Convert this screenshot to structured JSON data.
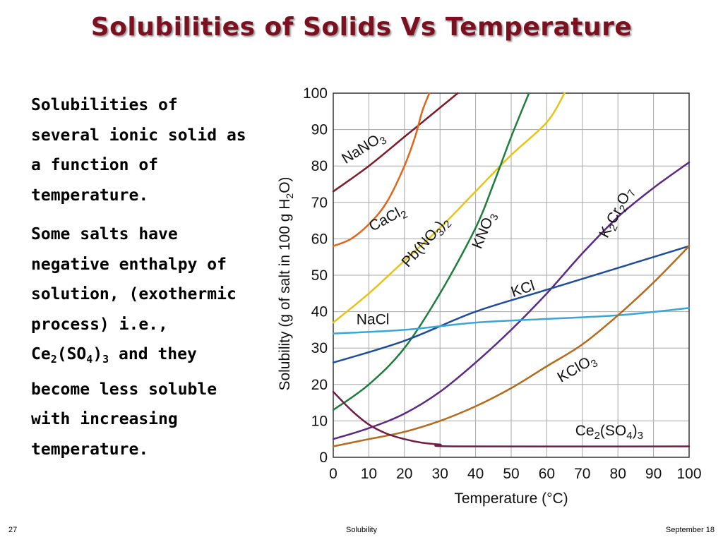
{
  "slide": {
    "title": "Solubilities of Solids Vs Temperature",
    "paragraph1": [
      "Solubilities of",
      "several ionic solid as",
      "a function of",
      "temperature."
    ],
    "paragraph2": {
      "lines": [
        "Some salts have",
        "negative enthalpy of",
        "solution, (exothermic",
        "process) i.e.,"
      ],
      "formula": {
        "a": "Ce",
        "s1": "2",
        "b": "(SO",
        "s2": "4",
        "c": ")",
        "s3": "3",
        "rest": " and they"
      },
      "lines_after": [
        "become less soluble",
        "with increasing",
        "temperature."
      ]
    },
    "footer": {
      "page": "27",
      "topic": "Solubility",
      "date": "September 18"
    }
  },
  "chart_data": {
    "type": "line",
    "xlabel": "Temperature (°C)",
    "ylabel_parts": {
      "a": "Solubility (g of salt in 100 g H",
      "sub": "2",
      "b": "O)"
    },
    "xlim": [
      0,
      100
    ],
    "ylim": [
      0,
      100
    ],
    "x_ticks": [
      "0",
      "10",
      "20",
      "30",
      "40",
      "50",
      "60",
      "70",
      "80",
      "90",
      "100"
    ],
    "y_ticks": [
      "0",
      "10",
      "20",
      "30",
      "40",
      "50",
      "60",
      "70",
      "80",
      "90",
      "100"
    ],
    "grid": true,
    "series": [
      {
        "name": "NaNO3",
        "color": "#7a1a2a",
        "label": [
          {
            "t": "NaNO"
          },
          {
            "t": "3",
            "sub": true
          }
        ],
        "points": [
          [
            0,
            73
          ],
          [
            10,
            80
          ],
          [
            20,
            88
          ],
          [
            30,
            96
          ],
          [
            35,
            100
          ]
        ]
      },
      {
        "name": "CaCl2",
        "color": "#e0661c",
        "label": [
          {
            "t": "CaCl"
          },
          {
            "t": "2",
            "sub": true
          }
        ],
        "points": [
          [
            0,
            58
          ],
          [
            5,
            60
          ],
          [
            10,
            64
          ],
          [
            15,
            70
          ],
          [
            20,
            80
          ],
          [
            23,
            88
          ],
          [
            25,
            95
          ],
          [
            27,
            100
          ]
        ]
      },
      {
        "name": "Pb(NO3)2",
        "color": "#e6c417",
        "label": [
          {
            "t": "Pb(NO"
          },
          {
            "t": "3",
            "sub": true
          },
          {
            "t": ")"
          },
          {
            "t": "2",
            "sub": true
          }
        ],
        "points": [
          [
            0,
            37
          ],
          [
            10,
            45
          ],
          [
            20,
            54
          ],
          [
            30,
            63
          ],
          [
            40,
            73
          ],
          [
            50,
            83
          ],
          [
            60,
            92
          ],
          [
            65,
            100
          ]
        ]
      },
      {
        "name": "KNO3",
        "color": "#1e7d3c",
        "label": [
          {
            "t": "KNO"
          },
          {
            "t": "3",
            "sub": true
          }
        ],
        "points": [
          [
            0,
            13
          ],
          [
            10,
            20
          ],
          [
            20,
            30
          ],
          [
            30,
            45
          ],
          [
            40,
            63
          ],
          [
            45,
            75
          ],
          [
            50,
            88
          ],
          [
            55,
            100
          ]
        ]
      },
      {
        "name": "K2Cr2O7",
        "color": "#5a2a82",
        "label": [
          {
            "t": "K"
          },
          {
            "t": "2",
            "sub": true
          },
          {
            "t": "Cr"
          },
          {
            "t": "2",
            "sub": true
          },
          {
            "t": "O"
          },
          {
            "t": "7",
            "sub": true
          }
        ],
        "points": [
          [
            0,
            5
          ],
          [
            10,
            8
          ],
          [
            20,
            12
          ],
          [
            30,
            18
          ],
          [
            40,
            26
          ],
          [
            50,
            35
          ],
          [
            60,
            45
          ],
          [
            70,
            56
          ],
          [
            80,
            66
          ],
          [
            90,
            74
          ],
          [
            100,
            81
          ]
        ]
      },
      {
        "name": "KCl",
        "color": "#1f4e96",
        "label": [
          {
            "t": "KCl"
          }
        ],
        "points": [
          [
            0,
            26
          ],
          [
            20,
            32
          ],
          [
            40,
            40
          ],
          [
            60,
            46
          ],
          [
            80,
            52
          ],
          [
            100,
            58
          ]
        ]
      },
      {
        "name": "NaCl",
        "color": "#3aa6d8",
        "label": [
          {
            "t": "NaCl"
          }
        ],
        "points": [
          [
            0,
            34
          ],
          [
            20,
            35
          ],
          [
            40,
            37
          ],
          [
            60,
            38
          ],
          [
            80,
            39
          ],
          [
            100,
            41
          ]
        ]
      },
      {
        "name": "KClO3",
        "color": "#b36b1c",
        "label": [
          {
            "t": "KClO"
          },
          {
            "t": "3",
            "sub": true
          }
        ],
        "points": [
          [
            0,
            3
          ],
          [
            10,
            5
          ],
          [
            20,
            7
          ],
          [
            30,
            10
          ],
          [
            40,
            14
          ],
          [
            50,
            19
          ],
          [
            60,
            25
          ],
          [
            70,
            31
          ],
          [
            80,
            39
          ],
          [
            90,
            48
          ],
          [
            100,
            58
          ]
        ]
      },
      {
        "name": "Ce2(SO4)3",
        "color": "#6e1c44",
        "label": [
          {
            "t": "Ce"
          },
          {
            "t": "2",
            "sub": true
          },
          {
            "t": "(SO"
          },
          {
            "t": "4",
            "sub": true
          },
          {
            "t": ")"
          },
          {
            "t": "3",
            "sub": true
          }
        ],
        "points": [
          [
            0,
            18
          ],
          [
            5,
            13
          ],
          [
            10,
            9
          ],
          [
            15,
            6.5
          ],
          [
            20,
            5
          ],
          [
            25,
            4
          ],
          [
            30,
            3.5
          ],
          [
            35,
            3
          ],
          [
            100,
            3
          ]
        ]
      }
    ]
  }
}
